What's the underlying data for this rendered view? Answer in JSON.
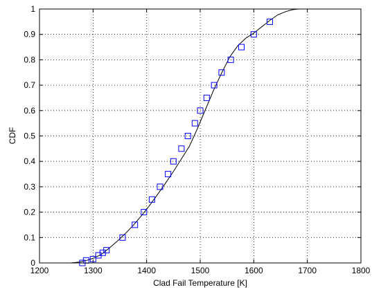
{
  "chart_data": {
    "type": "line",
    "title": "",
    "xlabel": "Clad Fail Temperature [K]",
    "ylabel": "CDF",
    "xlim": [
      1200,
      1800
    ],
    "ylim": [
      0,
      1
    ],
    "x_ticks": [
      1200,
      1300,
      1400,
      1500,
      1600,
      1700,
      1800
    ],
    "y_ticks": [
      0,
      0.1,
      0.2,
      0.3,
      0.4,
      0.5,
      0.6,
      0.7,
      0.8,
      0.9,
      1
    ],
    "grid": true,
    "legend": "none",
    "series": [
      {
        "kind": "line",
        "color": "#000000",
        "x": [
          1258,
          1268,
          1278,
          1288,
          1300,
          1315,
          1330,
          1345,
          1360,
          1375,
          1390,
          1405,
          1420,
          1435,
          1450,
          1465,
          1480,
          1495,
          1510,
          1525,
          1540,
          1555,
          1570,
          1585,
          1600,
          1615,
          1630,
          1645,
          1660,
          1672,
          1683,
          1688
        ],
        "y": [
          0.0,
          0.002,
          0.005,
          0.01,
          0.018,
          0.033,
          0.058,
          0.085,
          0.115,
          0.148,
          0.185,
          0.225,
          0.268,
          0.313,
          0.36,
          0.41,
          0.46,
          0.53,
          0.605,
          0.68,
          0.748,
          0.81,
          0.855,
          0.885,
          0.905,
          0.93,
          0.955,
          0.977,
          0.99,
          0.997,
          1.0,
          1.0
        ]
      },
      {
        "kind": "markers",
        "marker": "square",
        "color": "#0000ff",
        "x": [
          1280,
          1287,
          1300,
          1310,
          1318,
          1325,
          1355,
          1378,
          1395,
          1410,
          1425,
          1440,
          1450,
          1465,
          1477,
          1490,
          1500,
          1512,
          1526,
          1540,
          1557,
          1577,
          1600,
          1630
        ],
        "y": [
          0.0,
          0.01,
          0.015,
          0.03,
          0.04,
          0.05,
          0.1,
          0.15,
          0.2,
          0.25,
          0.3,
          0.35,
          0.4,
          0.45,
          0.5,
          0.55,
          0.6,
          0.65,
          0.7,
          0.75,
          0.8,
          0.85,
          0.9,
          0.95
        ]
      }
    ]
  }
}
